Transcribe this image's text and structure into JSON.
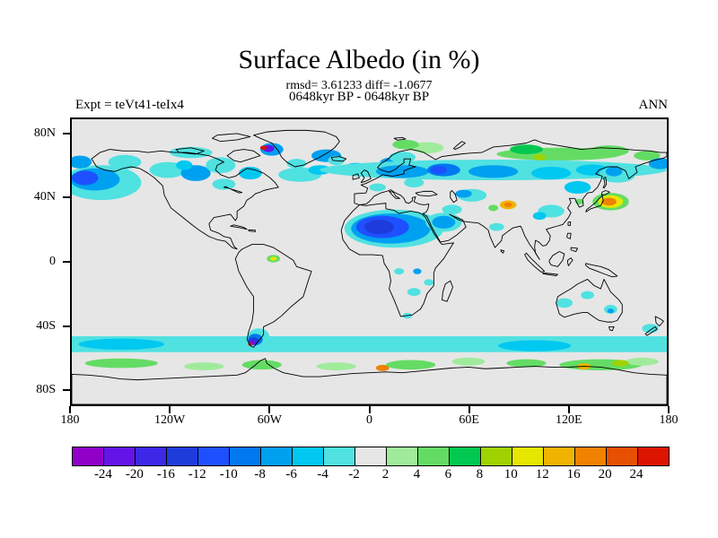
{
  "header": {
    "title": "Surface Albedo (in %)",
    "stats_line": "rmsd= 3.61233 diff= -1.0677",
    "period_line": "0648kyr BP - 0648kyr BP",
    "experiment_label": "Expt = teVt41-teIx4",
    "season_label": "ANN"
  },
  "axes": {
    "lat_ticks": [
      {
        "label": "80N",
        "value": 80
      },
      {
        "label": "40N",
        "value": 40
      },
      {
        "label": "0",
        "value": 0
      },
      {
        "label": "40S",
        "value": -40
      },
      {
        "label": "80S",
        "value": -80
      }
    ],
    "lon_ticks": [
      {
        "label": "180",
        "value": -180
      },
      {
        "label": "120W",
        "value": -120
      },
      {
        "label": "60W",
        "value": -60
      },
      {
        "label": "0",
        "value": 0
      },
      {
        "label": "60E",
        "value": 60
      },
      {
        "label": "120E",
        "value": 120
      },
      {
        "label": "180",
        "value": 180
      }
    ]
  },
  "colorbar": {
    "tick_labels": [
      "-24",
      "-20",
      "-16",
      "-12",
      "-10",
      "-8",
      "-6",
      "-4",
      "-2",
      "2",
      "4",
      "6",
      "8",
      "10",
      "12",
      "16",
      "20",
      "24"
    ],
    "colors": [
      "#9000c8",
      "#6414e6",
      "#3c28e6",
      "#1e3cdc",
      "#1e50ff",
      "#0078f0",
      "#00a0f0",
      "#00c8f0",
      "#50e1e1",
      "#e6e6e6",
      "#a0eb9b",
      "#64dc64",
      "#00c850",
      "#a0d200",
      "#e6e600",
      "#f0b400",
      "#f08200",
      "#e65000",
      "#dc1400"
    ]
  },
  "chart_data": {
    "type": "heatmap",
    "title": "Surface Albedo (in %)",
    "variable": "surface albedo difference",
    "units": "%",
    "experiment": "teVt41-teIx4",
    "period": "0648kyr BP - 0648kyr BP",
    "season": "ANN",
    "rmsd": 3.61233,
    "diff": -1.0677,
    "projection": "equirectangular",
    "lon_range": [
      -180,
      180
    ],
    "lat_range": [
      -90,
      90
    ],
    "contour_levels": [
      -24,
      -20,
      -16,
      -12,
      -10,
      -8,
      -6,
      -4,
      -2,
      2,
      4,
      6,
      8,
      10,
      12,
      16,
      20,
      24
    ],
    "background_value_range": [
      -2,
      2
    ],
    "anomaly_bands": [
      {
        "lat_from": -57,
        "lat_to": -47,
        "value": -3
      }
    ],
    "anomaly_blobs": [
      [
        -162,
        50,
        24,
        11,
        -3
      ],
      [
        -166,
        52,
        15,
        7,
        -7
      ],
      [
        -172,
        53,
        8,
        4.5,
        -11
      ],
      [
        -175,
        63,
        7,
        4,
        -7
      ],
      [
        -148,
        63,
        10,
        4.5,
        -3
      ],
      [
        -122,
        58,
        11,
        5,
        -3
      ],
      [
        -105,
        56,
        9,
        5,
        -7
      ],
      [
        -112,
        61,
        5,
        3,
        -5
      ],
      [
        -88,
        49,
        7,
        3.5,
        -3
      ],
      [
        -72,
        56,
        7,
        4,
        -5
      ],
      [
        -90,
        61,
        9,
        5,
        -3
      ],
      [
        -108,
        69,
        13,
        3.5,
        -3
      ],
      [
        -59,
        71,
        7,
        4,
        -7
      ],
      [
        -61,
        71.5,
        3.5,
        2.2,
        -22
      ],
      [
        -64,
        72,
        2,
        1.4,
        26
      ],
      [
        -44,
        62,
        6,
        3,
        -3
      ],
      [
        -26,
        67,
        9,
        4,
        -7
      ],
      [
        -20,
        64,
        5,
        3,
        -3
      ],
      [
        -42,
        55,
        13,
        4.5,
        -3
      ],
      [
        -30,
        58,
        7,
        3,
        -5
      ],
      [
        -8,
        59,
        7,
        3.5,
        -5
      ],
      [
        14,
        62,
        8,
        4,
        -7
      ],
      [
        20,
        66,
        8,
        3.5,
        -3
      ],
      [
        35,
        72,
        10,
        3.5,
        3
      ],
      [
        22,
        74,
        8,
        3,
        5
      ],
      [
        5,
        47,
        5,
        2.5,
        -3
      ],
      [
        27,
        50,
        6,
        3,
        -3
      ],
      [
        75,
        58,
        105,
        6.5,
        -3
      ],
      [
        20,
        57,
        16,
        4,
        -7
      ],
      [
        45,
        58,
        10,
        4,
        -9
      ],
      [
        42,
        58,
        5,
        2.5,
        -11
      ],
      [
        75,
        57,
        15,
        4,
        -7
      ],
      [
        110,
        56,
        12,
        4,
        -5
      ],
      [
        135,
        58,
        10,
        3.5,
        -5
      ],
      [
        115,
        68,
        38,
        4,
        5
      ],
      [
        95,
        71,
        10,
        3,
        7
      ],
      [
        145,
        70,
        12,
        3.5,
        5
      ],
      [
        168,
        67,
        8,
        3,
        5
      ],
      [
        103,
        66,
        4,
        2,
        9
      ],
      [
        176,
        62,
        7,
        3.5,
        -7
      ],
      [
        150,
        55,
        11,
        5,
        -3
      ],
      [
        148,
        57,
        5,
        3,
        -7
      ],
      [
        126,
        47,
        8,
        4,
        -5
      ],
      [
        110,
        32,
        8,
        4,
        -3
      ],
      [
        103,
        29,
        4,
        2.5,
        -5
      ],
      [
        127,
        38,
        2.5,
        1.8,
        5
      ],
      [
        146,
        38,
        11,
        5.5,
        5
      ],
      [
        146,
        38,
        7.5,
        4,
        11
      ],
      [
        145,
        38,
        4.5,
        2.5,
        17
      ],
      [
        84,
        36,
        5,
        2.8,
        13
      ],
      [
        84,
        36,
        2.5,
        1.5,
        17
      ],
      [
        75,
        34,
        3,
        2,
        5
      ],
      [
        62,
        42,
        9,
        4,
        -3
      ],
      [
        57,
        43,
        5,
        2.5,
        -7
      ],
      [
        50,
        33,
        6,
        3,
        -3
      ],
      [
        15,
        21,
        30,
        12,
        -3
      ],
      [
        13,
        21,
        24,
        9.5,
        -7
      ],
      [
        8,
        22,
        16,
        7,
        -11
      ],
      [
        6,
        22,
        9,
        4.5,
        -13
      ],
      [
        45,
        25,
        11,
        6,
        -3
      ],
      [
        45,
        25,
        7,
        4,
        -7
      ],
      [
        77,
        22,
        4.5,
        2.5,
        -3
      ],
      [
        -58,
        2,
        4,
        2.4,
        5
      ],
      [
        -58,
        2,
        2,
        1.2,
        11
      ],
      [
        18,
        -6,
        3,
        2,
        -3
      ],
      [
        29,
        -6,
        2.5,
        1.8,
        -7
      ],
      [
        27,
        -19,
        4,
        2.5,
        -3
      ],
      [
        36,
        -13,
        3,
        2,
        -3
      ],
      [
        23,
        -34,
        3,
        1.8,
        -3
      ],
      [
        118,
        -26,
        5,
        3,
        -3
      ],
      [
        132,
        -21,
        4,
        2.5,
        -3
      ],
      [
        146,
        -30,
        4,
        2.8,
        -3
      ],
      [
        146,
        -31,
        2,
        1.4,
        -7
      ],
      [
        170,
        -42,
        5,
        2.8,
        -3
      ],
      [
        -67,
        -47,
        6.5,
        5,
        -3
      ],
      [
        -69,
        -49,
        4.5,
        3.6,
        -9
      ],
      [
        -70,
        -50,
        3,
        2.4,
        -13
      ],
      [
        -70.5,
        -51,
        2,
        1.5,
        -22
      ],
      [
        -72,
        -52,
        1.3,
        1,
        26
      ],
      [
        -150,
        -52,
        26,
        3.5,
        -5
      ],
      [
        100,
        -53,
        22,
        3.5,
        -5
      ],
      [
        -150,
        -64,
        22,
        3,
        5
      ],
      [
        -100,
        -66,
        12,
        2.5,
        3
      ],
      [
        -65,
        -65,
        12,
        3,
        5
      ],
      [
        -20,
        -66,
        12,
        2.5,
        3
      ],
      [
        25,
        -65,
        15,
        3,
        5
      ],
      [
        60,
        -63,
        10,
        2.5,
        3
      ],
      [
        95,
        -64,
        12,
        2.5,
        5
      ],
      [
        140,
        -65,
        25,
        3.5,
        5
      ],
      [
        165,
        -63,
        10,
        2.5,
        3
      ],
      [
        8,
        -67,
        4,
        2,
        17
      ],
      [
        130,
        -66,
        4,
        2,
        13
      ],
      [
        152,
        -64,
        5,
        2,
        9
      ]
    ]
  }
}
